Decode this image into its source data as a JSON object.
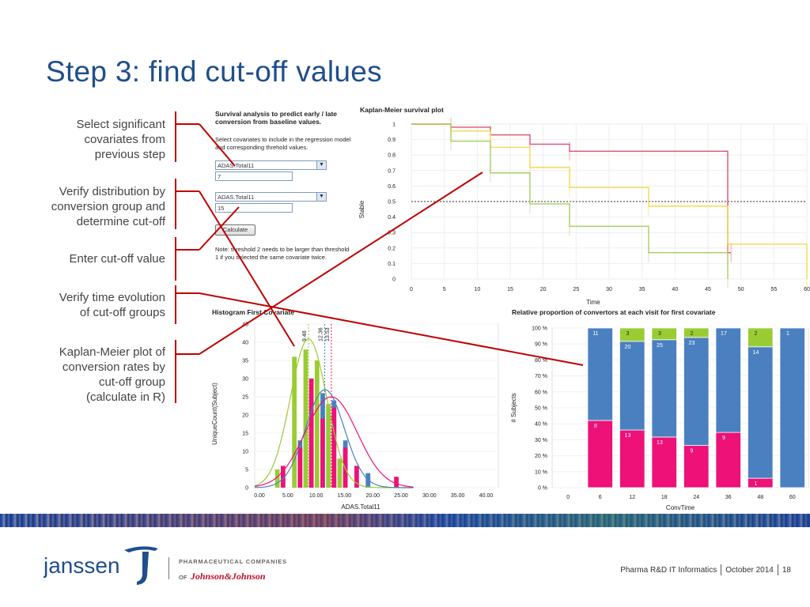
{
  "slide": {
    "title": "Step 3: find cut-off values",
    "callouts": [
      "Select significant\ncovariates from\nprevious step",
      "Verify distribution by\nconversion group and\ndetermine cut-off",
      "Enter cut-off value",
      "Verify time evolution\nof cut-off groups",
      "Kaplan-Meier plot of\nconversion rates by\ncut-off group\n(calculate in R)"
    ]
  },
  "form": {
    "title": "Survival analysis to predict early / late conversion from baseline values.",
    "instructions": "Select covariates to include in the regression model and corresponding threhold values.",
    "covariate1": "ADAS.Total11",
    "threshold1": "7",
    "covariate2": "ADAS.Total11",
    "threshold2": "15",
    "calculate_label": "Calculate",
    "note": "Note: threshold 2 needs to be larger than threshold 1 if you selected the same covariate twice."
  },
  "colors": {
    "title_blue": "#1f4e8c",
    "pink": "#ee1177",
    "green": "#99cc33",
    "blue": "#4a80c0",
    "yellow": "#f6d84a",
    "km_red": "#e05070",
    "km_green": "#a8cc60",
    "connector": "#c00000"
  },
  "chart_data": [
    {
      "type": "line",
      "title": "Kaplan-Meier survival plot",
      "xlabel": "Time",
      "ylabel": "Stable",
      "xlim": [
        0,
        60
      ],
      "ylim": [
        0,
        1
      ],
      "x_ticks": [
        0,
        5,
        10,
        15,
        20,
        25,
        30,
        35,
        40,
        45,
        50,
        55,
        60
      ],
      "y_ticks": [
        0,
        0.1,
        0.2,
        0.3,
        0.4,
        0.5,
        0.6,
        0.7,
        0.8,
        0.9,
        1
      ],
      "reference_line": 0.5,
      "series": [
        {
          "color": "#e05070",
          "x": [
            0,
            6,
            12,
            18,
            24,
            48,
            48.5
          ],
          "y": [
            1,
            0.98,
            0.93,
            0.87,
            0.825,
            0.17,
            0.17
          ]
        },
        {
          "color": "#f6d84a",
          "x": [
            0,
            6,
            12,
            18,
            24,
            36,
            48,
            60
          ],
          "y": [
            1,
            0.955,
            0.85,
            0.72,
            0.59,
            0.47,
            0.225,
            0
          ]
        },
        {
          "color": "#a8cc60",
          "x": [
            0,
            6,
            12,
            18,
            24,
            36,
            48
          ],
          "y": [
            1,
            0.89,
            0.685,
            0.485,
            0.34,
            0.17,
            0
          ]
        }
      ]
    },
    {
      "type": "bar",
      "title": "Histogram First Covariate",
      "xlabel": "ADAS.Total11",
      "ylabel": "UniqueCount(Subject)",
      "ylim": [
        0,
        45
      ],
      "x_ticks": [
        "0.00",
        "5.00",
        "10.00",
        "15.00",
        "20.00",
        "25.00",
        "30.00",
        "35.00",
        "40.00"
      ],
      "y_ticks": [
        0,
        5,
        10,
        15,
        20,
        25,
        30,
        35,
        40,
        45
      ],
      "reference_lines": [
        {
          "x": 9.48,
          "label": "9.48",
          "color": "#99cc33"
        },
        {
          "x": 12.36,
          "label": "12.36",
          "color": "#4a80c0"
        },
        {
          "x": 13.53,
          "label": "13.53",
          "color": "#ee1177"
        }
      ],
      "bins": [
        4,
        5,
        6,
        7,
        8,
        9,
        10,
        11,
        12,
        13,
        14,
        15,
        16,
        17,
        18,
        19,
        20,
        21,
        25
      ],
      "series": [
        {
          "color": "#99cc33",
          "values": [
            5,
            0,
            0,
            36,
            0,
            38,
            0,
            35,
            0,
            23,
            0,
            8,
            0,
            0,
            0,
            0,
            4,
            0,
            0
          ]
        },
        {
          "color": "#4a80c0",
          "values": [
            0,
            3,
            0,
            0,
            13,
            0,
            26,
            0,
            26,
            0,
            24,
            0,
            13,
            0,
            0,
            0,
            4,
            0,
            0
          ]
        },
        {
          "color": "#ee1177",
          "values": [
            0,
            6,
            0,
            0,
            11,
            0,
            30,
            0,
            19,
            0,
            22,
            0,
            11,
            0,
            6,
            0,
            0,
            0,
            3
          ]
        }
      ]
    },
    {
      "type": "bar",
      "title": "Relative proportion of convertors at each visit for first covariate",
      "xlabel": "ConvTime",
      "ylabel": "# Subjects",
      "categories": [
        "0",
        "6",
        "12",
        "18",
        "24",
        "36",
        "48",
        "60"
      ],
      "y_ticks": [
        "0 %",
        "10 %",
        "20 %",
        "30 %",
        "40 %",
        "50 %",
        "60 %",
        "70 %",
        "80 %",
        "90 %",
        "100 %"
      ],
      "stacks": [
        [],
        [
          {
            "color": "#ee1177",
            "value": 8
          },
          {
            "color": "#4a80c0",
            "value": 11
          }
        ],
        [
          {
            "color": "#ee1177",
            "value": 13
          },
          {
            "color": "#4a80c0",
            "value": 20
          },
          {
            "color": "#99cc33",
            "value": 3
          }
        ],
        [
          {
            "color": "#ee1177",
            "value": 13
          },
          {
            "color": "#4a80c0",
            "value": 25
          },
          {
            "color": "#99cc33",
            "value": 3
          }
        ],
        [
          {
            "color": "#ee1177",
            "value": 9
          },
          {
            "color": "#4a80c0",
            "value": 23
          },
          {
            "color": "#99cc33",
            "value": 2
          }
        ],
        [
          {
            "color": "#ee1177",
            "value": 9
          },
          {
            "color": "#4a80c0",
            "value": 17
          }
        ],
        [
          {
            "color": "#ee1177",
            "value": 1
          },
          {
            "color": "#4a80c0",
            "value": 14
          },
          {
            "color": "#99cc33",
            "value": 2
          }
        ],
        [
          {
            "color": "#4a80c0",
            "value": 1
          }
        ]
      ]
    }
  ],
  "footer": {
    "brand": "janssen",
    "company_line1": "PHARMACEUTICAL COMPANIES",
    "company_of": "OF",
    "company_line2": "Johnson&Johnson",
    "dept": "Pharma R&D IT Informatics",
    "date": "October 2014",
    "page": "18"
  }
}
